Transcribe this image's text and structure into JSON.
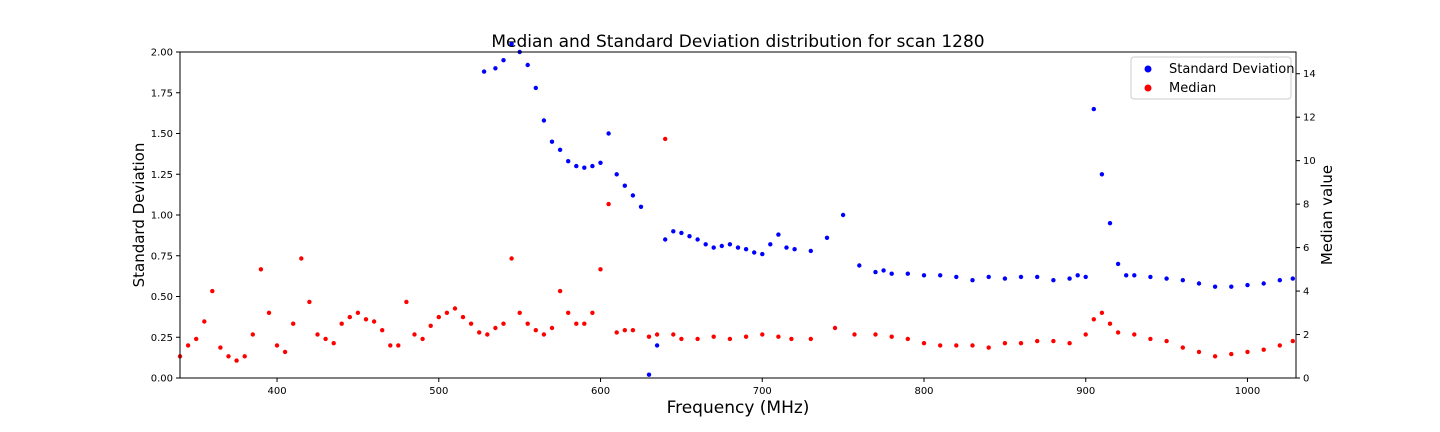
{
  "chart_data": {
    "type": "scatter",
    "title": "Median and Standard Deviation distribution for scan 1280",
    "xlabel": "Frequency (MHz)",
    "ylabel": "Standard Deviation",
    "y2label": "Median value",
    "xlim": [
      340,
      1030
    ],
    "ylim": [
      0,
      2.0
    ],
    "y2lim": [
      0,
      15
    ],
    "xticks": [
      400,
      500,
      600,
      700,
      800,
      900,
      1000
    ],
    "yticks": [
      0.0,
      0.25,
      0.5,
      0.75,
      1.0,
      1.25,
      1.5,
      1.75,
      2.0
    ],
    "ytick_labels": [
      "0.00",
      "0.25",
      "0.50",
      "0.75",
      "1.00",
      "1.25",
      "1.50",
      "1.75",
      "2.00"
    ],
    "y2ticks": [
      0,
      2,
      4,
      6,
      8,
      10,
      12,
      14
    ],
    "grid": false,
    "legend_position": "top-right",
    "series": [
      {
        "name": "Standard Deviation",
        "axis": "left",
        "color": "#0000ff",
        "x": [
          528,
          535,
          540,
          545,
          550,
          555,
          560,
          565,
          570,
          575,
          580,
          585,
          590,
          595,
          600,
          605,
          610,
          615,
          620,
          625,
          630,
          635,
          640,
          645,
          650,
          655,
          660,
          665,
          670,
          675,
          680,
          685,
          690,
          695,
          700,
          705,
          710,
          715,
          720,
          730,
          740,
          750,
          760,
          770,
          775,
          780,
          790,
          800,
          810,
          820,
          830,
          840,
          850,
          860,
          870,
          880,
          890,
          895,
          900,
          905,
          910,
          915,
          920,
          925,
          930,
          940,
          950,
          960,
          970,
          980,
          990,
          1000,
          1010,
          1020,
          1028
        ],
        "y": [
          1.88,
          1.9,
          1.95,
          2.05,
          2.0,
          1.92,
          1.78,
          1.58,
          1.45,
          1.4,
          1.33,
          1.3,
          1.29,
          1.3,
          1.32,
          1.5,
          1.25,
          1.18,
          1.12,
          1.05,
          0.02,
          0.2,
          0.85,
          0.9,
          0.89,
          0.87,
          0.85,
          0.82,
          0.8,
          0.81,
          0.82,
          0.8,
          0.79,
          0.77,
          0.76,
          0.82,
          0.88,
          0.8,
          0.79,
          0.78,
          0.86,
          1.0,
          0.69,
          0.65,
          0.66,
          0.64,
          0.64,
          0.63,
          0.63,
          0.62,
          0.6,
          0.62,
          0.61,
          0.62,
          0.62,
          0.6,
          0.61,
          0.63,
          0.62,
          1.65,
          1.25,
          0.95,
          0.7,
          0.63,
          0.63,
          0.62,
          0.61,
          0.6,
          0.58,
          0.56,
          0.56,
          0.57,
          0.58,
          0.6,
          0.61
        ]
      },
      {
        "name": "Median",
        "axis": "right",
        "color": "#ff0000",
        "x": [
          340,
          345,
          350,
          355,
          360,
          365,
          370,
          375,
          380,
          385,
          390,
          395,
          400,
          405,
          410,
          415,
          420,
          425,
          430,
          435,
          440,
          445,
          450,
          455,
          460,
          465,
          470,
          475,
          480,
          485,
          490,
          495,
          500,
          505,
          510,
          515,
          520,
          525,
          530,
          535,
          540,
          545,
          550,
          555,
          560,
          565,
          570,
          575,
          580,
          585,
          590,
          595,
          600,
          605,
          610,
          615,
          620,
          630,
          635,
          640,
          645,
          650,
          660,
          670,
          680,
          690,
          700,
          710,
          718,
          730,
          745,
          757,
          770,
          780,
          790,
          800,
          810,
          820,
          830,
          840,
          850,
          860,
          870,
          880,
          890,
          900,
          905,
          910,
          915,
          920,
          930,
          940,
          950,
          960,
          970,
          980,
          990,
          1000,
          1010,
          1020,
          1028
        ],
        "y": [
          1.0,
          1.5,
          1.8,
          2.6,
          4.0,
          1.4,
          1.0,
          0.8,
          1.0,
          2.0,
          5.0,
          3.0,
          1.5,
          1.2,
          2.5,
          5.5,
          3.5,
          2.0,
          1.8,
          1.6,
          2.5,
          2.8,
          3.0,
          2.7,
          2.6,
          2.2,
          1.5,
          1.5,
          3.5,
          2.0,
          1.8,
          2.4,
          2.8,
          3.0,
          3.2,
          2.8,
          2.5,
          2.1,
          2.0,
          2.3,
          2.5,
          5.5,
          3.0,
          2.5,
          2.2,
          2.0,
          2.3,
          4.0,
          3.0,
          2.5,
          2.5,
          3.0,
          5.0,
          8.0,
          2.1,
          2.2,
          2.2,
          1.9,
          2.0,
          11.0,
          2.0,
          1.8,
          1.8,
          1.9,
          1.8,
          1.9,
          2.0,
          1.9,
          1.8,
          1.8,
          2.3,
          2.0,
          2.0,
          1.9,
          1.8,
          1.6,
          1.5,
          1.5,
          1.5,
          1.4,
          1.6,
          1.6,
          1.7,
          1.7,
          1.6,
          2.0,
          2.7,
          3.0,
          2.5,
          2.1,
          2.0,
          1.8,
          1.7,
          1.4,
          1.2,
          1.0,
          1.1,
          1.2,
          1.3,
          1.5,
          1.7
        ]
      }
    ]
  }
}
